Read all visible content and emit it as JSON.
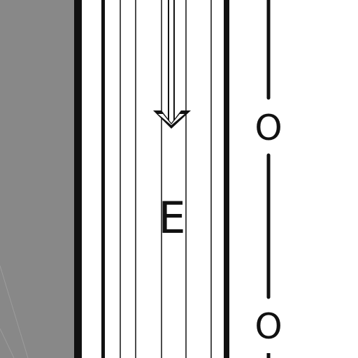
{
  "drawing": {
    "label_e": "E",
    "label_o_upper": "O",
    "label_o_lower": "O",
    "colors": {
      "background": "#ffffff",
      "shaded_region": "#888888",
      "ink": "#111111"
    },
    "icons": {
      "flow_arrow": "arrow-down-icon"
    }
  }
}
